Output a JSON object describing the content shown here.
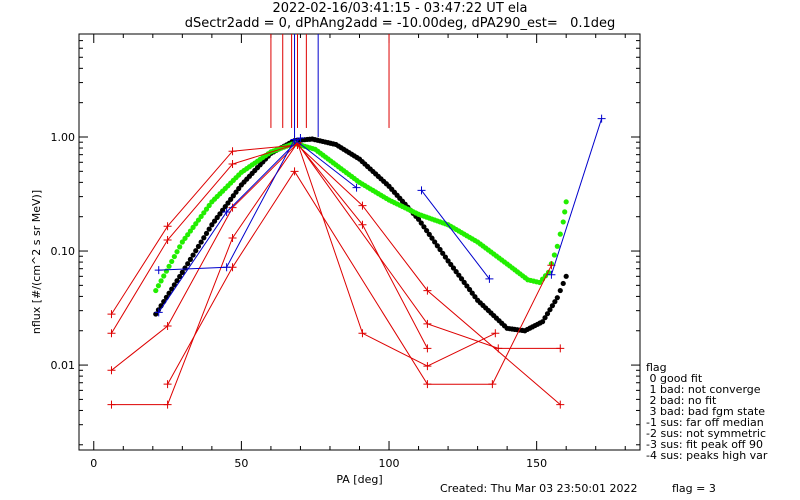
{
  "header": {
    "title_line1": "2022-02-16/03:41:15 - 03:47:22 UT ela",
    "title_line2": "dSectr2add = 0, dPhAng2add = -10.00deg, dPA290_est=   0.1deg"
  },
  "footer": {
    "created": "Created: Thu Mar 03 23:50:01 2022",
    "flag_status": "flag = 3"
  },
  "legend": {
    "title": "flag",
    "items": [
      " 0 good fit",
      " 1 bad: not converge",
      " 2 bad: no fit",
      " 3 bad: bad fgm state",
      "-1 sus: far off median",
      "-2 sus: not symmetric",
      "-3 sus: fit peak off 90",
      "-4 sus: peaks high var"
    ]
  },
  "colors": {
    "red": "#dd0000",
    "blue": "#0000cc",
    "black": "#000000",
    "green": "#22ee00"
  },
  "chart_data": {
    "type": "line",
    "xlabel": "PA [deg]",
    "ylabel": "nflux [#/(cm^2 s sr MeV)]",
    "xlim": [
      -5,
      185
    ],
    "ylim": [
      0.0018,
      8
    ],
    "yscale": "log",
    "xticks": [
      0,
      50,
      100,
      150
    ],
    "xtick_labels": [
      "0",
      "50",
      "100",
      "150"
    ],
    "yticks": [
      0.01,
      0.1,
      1.0
    ],
    "ytick_labels": [
      "0.01",
      "0.10",
      "1.00"
    ],
    "vertical_markers": {
      "color": "#dd0000",
      "x": [
        60,
        64,
        67,
        69,
        72,
        100
      ],
      "y_from": 1.2,
      "y_to": 8
    },
    "vertical_markers_blue": {
      "color": "#0000cc",
      "x": [
        68,
        76
      ],
      "y_from": 1.0,
      "y_to": 8
    },
    "series": [
      {
        "color": "#dd0000",
        "points": [
          [
            6,
            0.028
          ],
          [
            25,
            0.165
          ],
          [
            47,
            0.75
          ],
          [
            69,
            0.85
          ],
          [
            91,
            0.25
          ],
          [
            113,
            0.045
          ],
          [
            158,
            0.0045
          ]
        ]
      },
      {
        "color": "#dd0000",
        "points": [
          [
            6,
            0.019
          ],
          [
            25,
            0.125
          ],
          [
            47,
            0.58
          ],
          [
            69,
            0.87
          ],
          [
            91,
            0.17
          ],
          [
            113,
            0.014
          ]
        ]
      },
      {
        "color": "#dd0000",
        "points": [
          [
            6,
            0.009
          ],
          [
            25,
            0.022
          ],
          [
            47,
            0.24
          ],
          [
            69,
            0.88
          ],
          [
            113,
            0.023
          ],
          [
            137,
            0.014
          ],
          [
            158,
            0.014
          ]
        ]
      },
      {
        "color": "#dd0000",
        "points": [
          [
            6,
            0.0045
          ],
          [
            25,
            0.0045
          ],
          [
            47,
            0.13
          ],
          [
            69,
            0.89
          ],
          [
            91,
            0.019
          ],
          [
            113,
            0.0098
          ],
          [
            136,
            0.019
          ]
        ]
      },
      {
        "color": "#dd0000",
        "points": [
          [
            25,
            0.0068
          ],
          [
            47,
            0.072
          ],
          [
            68,
            0.5
          ],
          [
            113,
            0.0068
          ],
          [
            135,
            0.0068
          ],
          [
            155,
            0.075
          ]
        ]
      },
      {
        "color": "#0000cc",
        "points": [
          [
            22,
            0.068
          ],
          [
            45,
            0.072
          ],
          [
            68,
            0.95
          ],
          [
            89,
            0.36
          ]
        ]
      },
      {
        "color": "#0000cc",
        "points": [
          [
            22,
            0.029
          ],
          [
            45,
            0.22
          ],
          [
            70,
            0.98
          ]
        ]
      },
      {
        "color": "#0000cc",
        "points": [
          [
            111,
            0.34
          ],
          [
            134,
            0.057
          ]
        ]
      },
      {
        "color": "#0000cc",
        "points": [
          [
            155,
            0.062
          ],
          [
            172,
            1.45
          ]
        ]
      }
    ],
    "fits": [
      {
        "color": "#000000",
        "points": [
          [
            21,
            0.028
          ],
          [
            30,
            0.065
          ],
          [
            40,
            0.17
          ],
          [
            50,
            0.38
          ],
          [
            60,
            0.72
          ],
          [
            68,
            0.93
          ],
          [
            74,
            0.96
          ],
          [
            82,
            0.86
          ],
          [
            90,
            0.64
          ],
          [
            100,
            0.37
          ],
          [
            110,
            0.19
          ],
          [
            120,
            0.082
          ],
          [
            130,
            0.037
          ],
          [
            140,
            0.021
          ],
          [
            146,
            0.02
          ],
          [
            152,
            0.024
          ],
          [
            157,
            0.039
          ],
          [
            160,
            0.06
          ]
        ]
      },
      {
        "color": "#22ee00",
        "points": [
          [
            21,
            0.045
          ],
          [
            30,
            0.12
          ],
          [
            40,
            0.27
          ],
          [
            50,
            0.49
          ],
          [
            60,
            0.74
          ],
          [
            68,
            0.88
          ],
          [
            75,
            0.78
          ],
          [
            82,
            0.57
          ],
          [
            90,
            0.4
          ],
          [
            100,
            0.28
          ],
          [
            110,
            0.21
          ],
          [
            120,
            0.17
          ],
          [
            130,
            0.12
          ],
          [
            140,
            0.077
          ],
          [
            147,
            0.056
          ],
          [
            151,
            0.053
          ],
          [
            154,
            0.065
          ],
          [
            157,
            0.11
          ],
          [
            159,
            0.18
          ],
          [
            160,
            0.27
          ]
        ]
      }
    ]
  }
}
